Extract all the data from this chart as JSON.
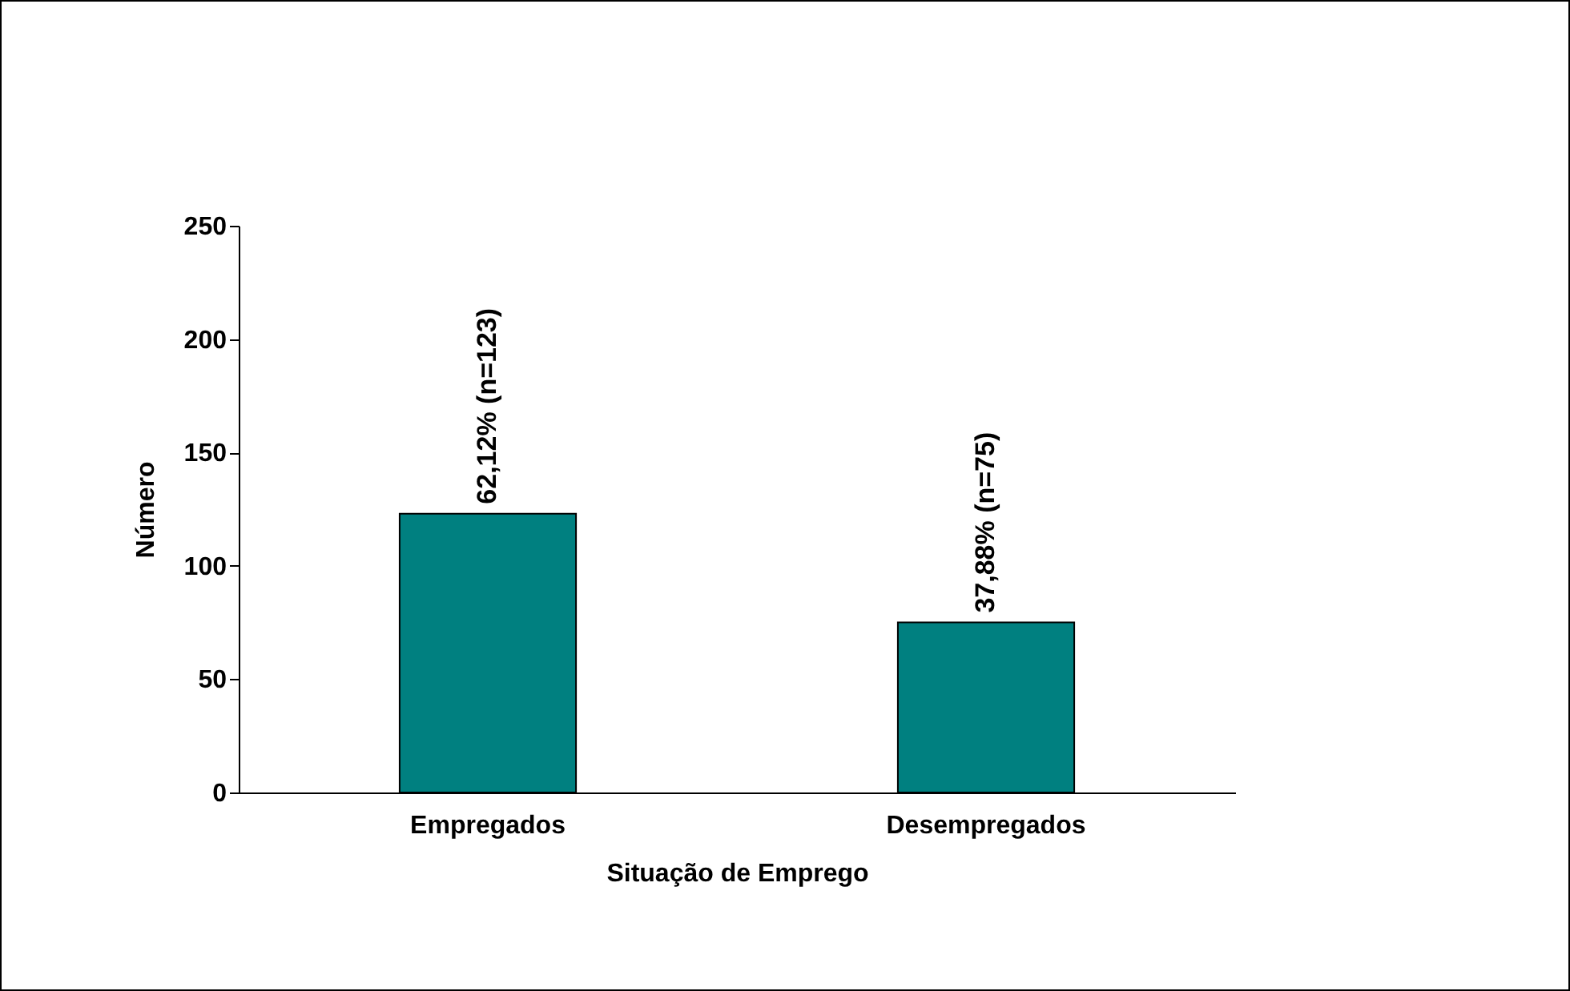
{
  "chart_data": {
    "type": "bar",
    "xlabel": "Situação de Emprego",
    "ylabel": "Número",
    "categories": [
      "Empregados",
      "Desempregados"
    ],
    "values": [
      123,
      75
    ],
    "value_labels": [
      "62,12% (n=123)",
      "37,88% (n=75)"
    ],
    "color": "#008080",
    "ylim": [
      0,
      250
    ],
    "yticks": [
      0,
      50,
      100,
      150,
      200,
      250
    ],
    "grid": false
  }
}
